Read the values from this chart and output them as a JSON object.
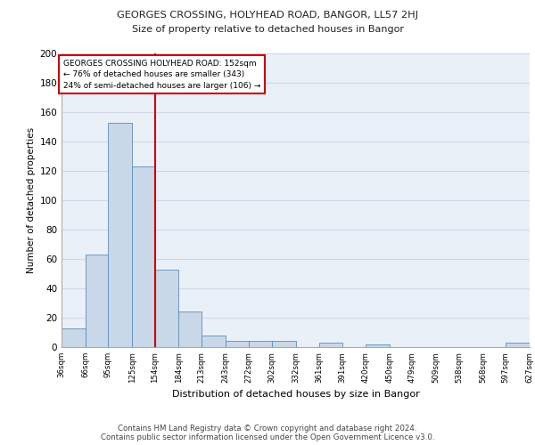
{
  "title1": "GEORGES CROSSING, HOLYHEAD ROAD, BANGOR, LL57 2HJ",
  "title2": "Size of property relative to detached houses in Bangor",
  "xlabel": "Distribution of detached houses by size in Bangor",
  "ylabel": "Number of detached properties",
  "bin_edges": [
    36,
    66,
    95,
    125,
    154,
    184,
    213,
    243,
    272,
    302,
    332,
    361,
    391,
    420,
    450,
    479,
    509,
    538,
    568,
    597,
    627
  ],
  "bin_labels": [
    "36sqm",
    "66sqm",
    "95sqm",
    "125sqm",
    "154sqm",
    "184sqm",
    "213sqm",
    "243sqm",
    "272sqm",
    "302sqm",
    "332sqm",
    "361sqm",
    "391sqm",
    "420sqm",
    "450sqm",
    "479sqm",
    "509sqm",
    "538sqm",
    "568sqm",
    "597sqm",
    "627sqm"
  ],
  "counts": [
    13,
    63,
    153,
    123,
    53,
    24,
    8,
    4,
    4,
    4,
    0,
    3,
    0,
    2,
    0,
    0,
    0,
    0,
    0,
    3
  ],
  "bar_color": "#c8d8e8",
  "bar_edge_color": "#5b8db8",
  "vline_x": 154,
  "annotation_line1": "GEORGES CROSSING HOLYHEAD ROAD: 152sqm",
  "annotation_line2": "← 76% of detached houses are smaller (343)",
  "annotation_line3": "24% of semi-detached houses are larger (106) →",
  "annotation_box_color": "#ffffff",
  "annotation_box_edge": "#cc0000",
  "vline_color": "#cc0000",
  "ylim": [
    0,
    200
  ],
  "yticks": [
    0,
    20,
    40,
    60,
    80,
    100,
    120,
    140,
    160,
    180,
    200
  ],
  "grid_color": "#d0d8e8",
  "background_color": "#eaf0f8",
  "footer1": "Contains HM Land Registry data © Crown copyright and database right 2024.",
  "footer2": "Contains public sector information licensed under the Open Government Licence v3.0."
}
